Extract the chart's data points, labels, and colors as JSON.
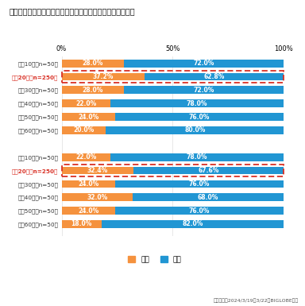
{
  "title": "メンタルヘルスの不調で病院などの診察を受けたことがある",
  "categories": [
    "男性10代（n=50）",
    "男性20代（n=250）",
    "男性30代（n=50）",
    "男性40代（n=50）",
    "男性50代（n=50）",
    "男性60代（n=50）",
    "",
    "女性10代（n=50）",
    "女性20代（n=250）",
    "女性30代（n=50）",
    "女性40代（n=50）",
    "女性50代（n=50）",
    "女性60代（n=50）"
  ],
  "aru_values": [
    28.0,
    37.2,
    28.0,
    22.0,
    24.0,
    20.0,
    0,
    22.0,
    32.4,
    24.0,
    32.0,
    24.0,
    18.0
  ],
  "nai_values": [
    72.0,
    62.8,
    72.0,
    78.0,
    76.0,
    80.0,
    0,
    78.0,
    67.6,
    76.0,
    68.0,
    76.0,
    82.0
  ],
  "highlighted_rows": [
    1,
    8
  ],
  "aru_color": "#F5923E",
  "nai_color": "#2196D3",
  "highlight_color": "#D93025",
  "bg_color": "#FFFFFF",
  "bar_height": 0.58,
  "footnote": "調査期間：2024/3/19～3/22　BIGLOBE調べ"
}
